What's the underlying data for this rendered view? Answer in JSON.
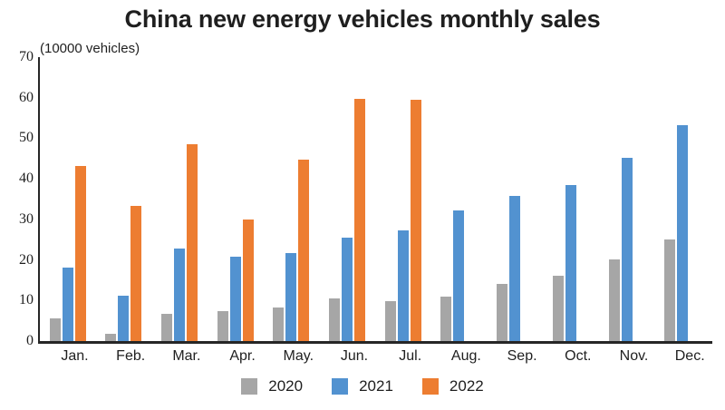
{
  "title": "China new energy vehicles monthly sales",
  "unit_label": "(10000 vehicles)",
  "chart_data": {
    "type": "bar",
    "title": "China new energy vehicles monthly sales",
    "ylabel": "(10000 vehicles)",
    "categories": [
      "Jan.",
      "Feb.",
      "Mar.",
      "Apr.",
      "May.",
      "Jun.",
      "Jul.",
      "Aug.",
      "Sep.",
      "Oct.",
      "Nov.",
      "Dec."
    ],
    "series": [
      {
        "name": "2020",
        "color": "#a6a6a6",
        "values": [
          5.5,
          1.8,
          6.6,
          7.3,
          8.2,
          10.4,
          9.8,
          11.0,
          14.2,
          16.2,
          20.2,
          25.0
        ]
      },
      {
        "name": "2021",
        "color": "#5292d0",
        "values": [
          18.1,
          11.1,
          22.7,
          20.8,
          21.8,
          25.6,
          27.2,
          32.1,
          35.8,
          38.4,
          45.2,
          53.2
        ]
      },
      {
        "name": "2022",
        "color": "#ed7d31",
        "values": [
          43.2,
          33.4,
          48.5,
          30.0,
          44.8,
          59.8,
          59.4,
          null,
          null,
          null,
          null,
          null
        ]
      }
    ],
    "ylim": [
      0,
      70
    ],
    "ytick_step": 10,
    "yticks": [
      0,
      10,
      20,
      30,
      40,
      50,
      60,
      70
    ],
    "grid": false,
    "legend_position": "bottom"
  }
}
